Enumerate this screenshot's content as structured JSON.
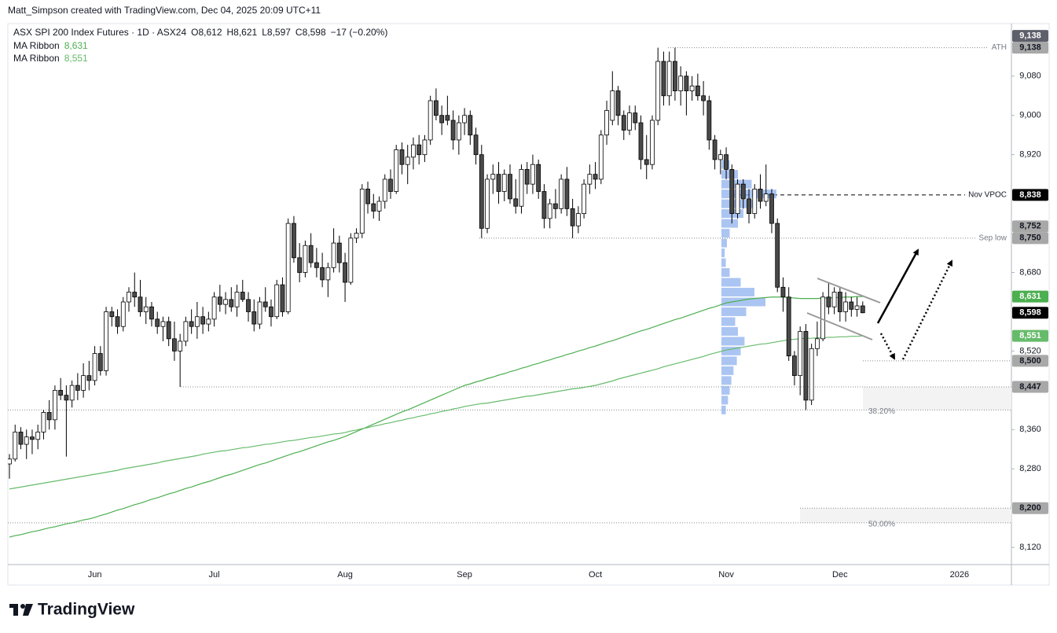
{
  "header": {
    "attribution": "Matt_Simpson created with TradingView.com, Dec 04, 2025 20:09 UTC+11",
    "brand": "TradingView"
  },
  "chart_data": {
    "type": "candlestick",
    "title": "ASX SPI 200 Index Futures · 1D · ASX24",
    "legend_values": [
      {
        "key": "O",
        "value": "8,612"
      },
      {
        "key": "H",
        "value": "8,621"
      },
      {
        "key": "L",
        "value": "8,597"
      },
      {
        "key": "C",
        "value": "8,598"
      }
    ],
    "change": "−17 (−0.20%)",
    "categories": [
      null,
      null,
      null,
      null,
      null,
      null,
      null,
      null,
      null,
      null,
      null,
      null,
      null,
      null,
      null,
      "Jun",
      null,
      null,
      null,
      null,
      null,
      null,
      null,
      null,
      null,
      null,
      null,
      null,
      null,
      null,
      null,
      null,
      null,
      null,
      null,
      null,
      "Jul",
      null,
      null,
      null,
      null,
      null,
      null,
      null,
      null,
      null,
      null,
      null,
      null,
      null,
      null,
      null,
      null,
      null,
      null,
      null,
      null,
      null,
      null,
      "Aug",
      null,
      null,
      null,
      null,
      null,
      null,
      null,
      null,
      null,
      null,
      null,
      null,
      null,
      null,
      null,
      null,
      null,
      null,
      null,
      null,
      "Sep",
      null,
      null,
      null,
      null,
      null,
      null,
      null,
      null,
      null,
      null,
      null,
      null,
      null,
      null,
      null,
      null,
      null,
      null,
      null,
      null,
      null,
      null,
      "Oct",
      null,
      null,
      null,
      null,
      null,
      null,
      null,
      null,
      null,
      null,
      null,
      null,
      null,
      null,
      null,
      null,
      null,
      null,
      null,
      null,
      null,
      null,
      "Nov",
      null,
      null,
      null,
      null,
      null,
      null,
      null,
      null,
      null,
      null,
      null,
      null,
      null,
      null,
      null,
      null,
      null,
      null,
      null,
      "Dec",
      null,
      null,
      null,
      null,
      null,
      null,
      null,
      null,
      null,
      null,
      null,
      null,
      null,
      null,
      null,
      null,
      null,
      null,
      null,
      null,
      "2026",
      null,
      null,
      null,
      null,
      null,
      null,
      null,
      null,
      null
    ],
    "open": [
      8290,
      8300,
      8355,
      8330,
      8345,
      8340,
      8355,
      8395,
      8380,
      8440,
      8430,
      8420,
      8450,
      8440,
      8470,
      8460,
      8515,
      8480,
      8600,
      8590,
      8570,
      8620,
      8640,
      8630,
      8600,
      8610,
      8585,
      8570,
      8580,
      8545,
      8520,
      8540,
      8580,
      8570,
      8590,
      8575,
      8585,
      8630,
      8615,
      8625,
      8610,
      8640,
      8625,
      8600,
      8575,
      8620,
      8610,
      8590,
      8655,
      8600,
      8780,
      8710,
      8680,
      8735,
      8700,
      8690,
      8665,
      8690,
      8740,
      8700,
      8660,
      8750,
      8760,
      8850,
      8820,
      8805,
      8825,
      8870,
      8845,
      8930,
      8900,
      8915,
      8940,
      8920,
      8950,
      9030,
      9000,
      9000,
      8990,
      8950,
      8985,
      9000,
      8960,
      8920,
      8770,
      8870,
      8880,
      8845,
      8880,
      8830,
      8815,
      8890,
      8860,
      8900,
      8845,
      8790,
      8820,
      8810,
      8870,
      8810,
      8775,
      8800,
      8860,
      8880,
      8870,
      8960,
      8990,
      9050,
      9000,
      8970,
      9005,
      8985,
      8910,
      8900,
      8990,
      9110,
      9040,
      9110,
      9050,
      9080,
      9050,
      9060,
      9040,
      9030,
      8950,
      8910,
      8920,
      8890,
      8800,
      8860,
      8830,
      8800,
      8850,
      8825,
      8840,
      8780,
      8650,
      8630,
      8510,
      8470,
      8560,
      8420,
      8525,
      8545,
      8630,
      8610,
      8640,
      8600,
      8620,
      8605,
      8612,
      null,
      null,
      null,
      null,
      null,
      null,
      null,
      null,
      null,
      null,
      null,
      null,
      null,
      null,
      null,
      null,
      null,
      null,
      null,
      null,
      null,
      null,
      null,
      null,
      null,
      null
    ],
    "high": [
      8310,
      8370,
      8365,
      8360,
      8360,
      8370,
      8400,
      8420,
      8450,
      8465,
      8450,
      8460,
      8475,
      8495,
      8500,
      8530,
      8530,
      8610,
      8610,
      8605,
      8630,
      8650,
      8680,
      8665,
      8630,
      8620,
      8600,
      8590,
      8590,
      8580,
      8555,
      8590,
      8605,
      8620,
      8610,
      8600,
      8640,
      8655,
      8640,
      8650,
      8655,
      8665,
      8640,
      8625,
      8630,
      8650,
      8625,
      8665,
      8670,
      8790,
      8795,
      8740,
      8745,
      8760,
      8730,
      8720,
      8700,
      8770,
      8755,
      8720,
      8760,
      8770,
      8860,
      8865,
      8840,
      8835,
      8880,
      8890,
      8940,
      8945,
      8940,
      8955,
      8960,
      8960,
      9040,
      9055,
      9020,
      9040,
      9010,
      9000,
      9015,
      9010,
      8975,
      8940,
      8880,
      8900,
      8905,
      8890,
      8900,
      8870,
      8900,
      8905,
      8920,
      8910,
      8860,
      8830,
      8850,
      8880,
      8895,
      8830,
      8815,
      8870,
      8900,
      8905,
      8970,
      9030,
      9090,
      9060,
      9010,
      9020,
      9020,
      9000,
      8960,
      9000,
      9138,
      9130,
      9130,
      9138,
      9100,
      9090,
      9080,
      9085,
      9070,
      9040,
      8960,
      8930,
      8935,
      8900,
      8870,
      8870,
      8850,
      8860,
      8880,
      8900,
      8850,
      8790,
      8670,
      8650,
      8520,
      8570,
      8575,
      8535,
      8580,
      8640,
      8660,
      8650,
      8650,
      8640,
      8630,
      8630,
      8621,
      null,
      null,
      null,
      null,
      null,
      null,
      null,
      null,
      null,
      null,
      null,
      null,
      null,
      null,
      null,
      null,
      null,
      null,
      null,
      null,
      null,
      null,
      null,
      null,
      null,
      null
    ],
    "low": [
      8260,
      8295,
      8320,
      8300,
      8310,
      8320,
      8340,
      8360,
      8360,
      8420,
      8305,
      8405,
      8420,
      8425,
      8440,
      8450,
      8470,
      8470,
      8570,
      8555,
      8560,
      8600,
      8610,
      8590,
      8575,
      8570,
      8555,
      8540,
      8530,
      8500,
      8447,
      8530,
      8555,
      8545,
      8555,
      8560,
      8570,
      8600,
      8595,
      8600,
      8590,
      8620,
      8580,
      8560,
      8565,
      8600,
      8570,
      8585,
      8590,
      8595,
      8700,
      8660,
      8670,
      8690,
      8670,
      8650,
      8630,
      8680,
      8680,
      8620,
      8655,
      8740,
      8750,
      8800,
      8790,
      8785,
      8810,
      8830,
      8840,
      8880,
      8860,
      8890,
      8900,
      8905,
      8940,
      8990,
      8960,
      8980,
      8930,
      8920,
      8960,
      8940,
      8900,
      8750,
      8760,
      8840,
      8820,
      8825,
      8820,
      8800,
      8800,
      8840,
      8840,
      8830,
      8770,
      8770,
      8790,
      8800,
      8795,
      8750,
      8760,
      8790,
      8840,
      8850,
      8860,
      8940,
      8980,
      8980,
      8950,
      8960,
      8970,
      8890,
      8870,
      8890,
      8980,
      9020,
      9020,
      9030,
      9020,
      9000,
      9030,
      9030,
      9000,
      8930,
      8890,
      8880,
      8870,
      8780,
      8790,
      8810,
      8780,
      8790,
      8810,
      8815,
      8760,
      8640,
      8600,
      8500,
      8450,
      8430,
      8400,
      8410,
      8510,
      8540,
      8595,
      8595,
      8580,
      8580,
      8590,
      8590,
      8597,
      null,
      null,
      null,
      null,
      null,
      null,
      null,
      null,
      null,
      null,
      null,
      null,
      null,
      null,
      null,
      null,
      null,
      null,
      null,
      null,
      null,
      null,
      null,
      null,
      null,
      null
    ],
    "close": [
      8300,
      8355,
      8330,
      8345,
      8340,
      8355,
      8395,
      8380,
      8440,
      8430,
      8420,
      8450,
      8440,
      8470,
      8460,
      8515,
      8480,
      8600,
      8590,
      8570,
      8620,
      8640,
      8630,
      8600,
      8610,
      8585,
      8570,
      8580,
      8545,
      8520,
      8540,
      8580,
      8570,
      8590,
      8575,
      8585,
      8630,
      8615,
      8625,
      8610,
      8640,
      8625,
      8600,
      8575,
      8620,
      8610,
      8590,
      8655,
      8600,
      8780,
      8710,
      8680,
      8735,
      8700,
      8690,
      8665,
      8690,
      8740,
      8700,
      8660,
      8750,
      8760,
      8850,
      8820,
      8805,
      8825,
      8870,
      8845,
      8930,
      8900,
      8915,
      8940,
      8920,
      8950,
      9030,
      9000,
      8985,
      8990,
      8950,
      8985,
      9000,
      8960,
      8920,
      8770,
      8870,
      8880,
      8845,
      8880,
      8830,
      8815,
      8890,
      8860,
      8900,
      8845,
      8790,
      8820,
      8810,
      8870,
      8810,
      8775,
      8800,
      8860,
      8880,
      8870,
      8960,
      9010,
      9050,
      9000,
      8970,
      9005,
      8985,
      8910,
      8900,
      8990,
      9110,
      9040,
      9110,
      9050,
      9080,
      9050,
      9060,
      9040,
      9030,
      8950,
      8910,
      8920,
      8890,
      8800,
      8860,
      8830,
      8800,
      8850,
      8825,
      8840,
      8780,
      8650,
      8630,
      8510,
      8470,
      8560,
      8420,
      8525,
      8545,
      8630,
      8610,
      8640,
      8600,
      8620,
      8605,
      8612,
      8598,
      null,
      null,
      null,
      null,
      null,
      null,
      null,
      null,
      null,
      null,
      null,
      null,
      null,
      null,
      null,
      null,
      null,
      null,
      null,
      null,
      null,
      null,
      null,
      null,
      null,
      null
    ],
    "up_color": "#ffffff",
    "down_color": "#4a4a4a",
    "wick_color": "#000000",
    "last_value_label": "8,598",
    "series": [
      {
        "name": "MA Ribbon",
        "color": "#4caf50",
        "value_label": "8,631",
        "values": [
          8141,
          8144,
          8146,
          8149,
          8152,
          8154,
          8157,
          8160,
          8162,
          8165,
          8168,
          8170,
          8173,
          8176,
          8178,
          8181,
          8185,
          8188,
          8192,
          8196,
          8199,
          8203,
          8207,
          8210,
          8214,
          8218,
          8221,
          8225,
          8229,
          8232,
          8236,
          8240,
          8243,
          8247,
          8251,
          8254,
          8258,
          8262,
          8266,
          8269,
          8273,
          8277,
          8281,
          8285,
          8289,
          8292,
          8296,
          8300,
          8304,
          8308,
          8312,
          8315,
          8319,
          8323,
          8327,
          8331,
          8335,
          8338,
          8342,
          8346,
          8351,
          8356,
          8361,
          8366,
          8371,
          8376,
          8381,
          8386,
          8391,
          8396,
          8400,
          8405,
          8410,
          8415,
          8420,
          8425,
          8430,
          8435,
          8440,
          8445,
          8450,
          8453,
          8457,
          8460,
          8464,
          8467,
          8471,
          8474,
          8478,
          8481,
          8485,
          8488,
          8492,
          8495,
          8499,
          8502,
          8506,
          8509,
          8513,
          8516,
          8520,
          8523,
          8527,
          8530,
          8534,
          8538,
          8541,
          8545,
          8549,
          8553,
          8557,
          8561,
          8564,
          8568,
          8572,
          8576,
          8580,
          8584,
          8587,
          8591,
          8595,
          8599,
          8603,
          8607,
          8610,
          8614,
          8618,
          8620,
          8622,
          8624,
          8626,
          8627,
          8628,
          8629,
          8630,
          8630,
          8630,
          8629,
          8628,
          8627,
          8627,
          8627,
          8627,
          8628,
          8628,
          8629,
          8629,
          8630,
          8630,
          8631,
          8631,
          null,
          null,
          null,
          null,
          null,
          null,
          null,
          null,
          null,
          null,
          null,
          null,
          null,
          null,
          null,
          null,
          null,
          null,
          null,
          null,
          null,
          null,
          null,
          null,
          null,
          null
        ]
      },
      {
        "name": "MA Ribbon",
        "color": "#66bb6a",
        "value_label": "8,551",
        "values": [
          8239,
          8241,
          8243,
          8245,
          8247,
          8249,
          8251,
          8253,
          8255,
          8257,
          8259,
          8261,
          8263,
          8265,
          8267,
          8269,
          8271,
          8273,
          8275,
          8277,
          8280,
          8282,
          8284,
          8286,
          8288,
          8290,
          8292,
          8295,
          8297,
          8299,
          8301,
          8303,
          8305,
          8307,
          8310,
          8312,
          8314,
          8316,
          8317,
          8319,
          8321,
          8323,
          8324,
          8326,
          8328,
          8330,
          8331,
          8333,
          8335,
          8337,
          8338,
          8340,
          8342,
          8344,
          8345,
          8347,
          8349,
          8351,
          8352,
          8354,
          8357,
          8359,
          8362,
          8364,
          8367,
          8369,
          8372,
          8374,
          8377,
          8379,
          8382,
          8384,
          8387,
          8389,
          8392,
          8394,
          8397,
          8399,
          8402,
          8404,
          8407,
          8409,
          8411,
          8413,
          8414,
          8416,
          8418,
          8420,
          8422,
          8424,
          8426,
          8428,
          8429,
          8431,
          8433,
          8435,
          8437,
          8439,
          8441,
          8443,
          8444,
          8446,
          8448,
          8450,
          8453,
          8456,
          8459,
          8463,
          8466,
          8469,
          8472,
          8475,
          8478,
          8481,
          8484,
          8488,
          8491,
          8494,
          8497,
          8500,
          8503,
          8506,
          8509,
          8513,
          8516,
          8519,
          8522,
          8524,
          8526,
          8528,
          8530,
          8532,
          8534,
          8535,
          8537,
          8539,
          8541,
          8543,
          8544,
          8545,
          8546,
          8546,
          8547,
          8547,
          8548,
          8548,
          8549,
          8549,
          8550,
          8550,
          8551,
          null,
          null,
          null,
          null,
          null,
          null,
          null,
          null,
          null,
          null,
          null,
          null,
          null,
          null,
          null,
          null,
          null,
          null,
          null,
          null,
          null,
          null,
          null,
          null,
          null,
          null
        ]
      }
    ],
    "ylim": [
      8085,
      9187
    ],
    "yticks": [
      {
        "value": 8120,
        "label": "8,120"
      },
      {
        "value": 8280,
        "label": "8,280"
      },
      {
        "value": 8360,
        "label": "8,360"
      },
      {
        "value": 8520,
        "label": "8,520"
      },
      {
        "value": 8680,
        "label": "8,680"
      },
      {
        "value": 8920,
        "label": "8,920"
      },
      {
        "value": 9000,
        "label": "9,000"
      },
      {
        "value": 9080,
        "label": "9,080"
      }
    ],
    "grid": false,
    "levels": [
      {
        "label": "ATH",
        "value": 9138,
        "value_label": "9,138",
        "line": "dotted",
        "badge": "#a8a8a8"
      },
      {
        "value": 9138,
        "value_label": "9,138",
        "badge": "#5d606b"
      },
      {
        "label": "Nov VPOC",
        "value": 8838,
        "value_label": "8,838",
        "line": "dashed",
        "badge": "#000000"
      },
      {
        "label": "Sep low",
        "value": 8750,
        "value_label": "8,750",
        "line": "dotted",
        "badge": "#a8a8a8"
      },
      {
        "value": 8752,
        "value_label": "8,752",
        "badge": "#a8a8a8"
      },
      {
        "value": 8500,
        "value_label": "8,500",
        "line": "dotted",
        "badge": "#a8a8a8"
      },
      {
        "value": 8447,
        "value_label": "8,447",
        "line": "dotted",
        "badge": "#a8a8a8"
      },
      {
        "label": "38.20%",
        "value": 8400,
        "line": "dotted"
      },
      {
        "value": 8200,
        "value_label": "8,200",
        "line": "dotted",
        "badge": "#a8a8a8"
      },
      {
        "label": "50.00%",
        "value": 8170,
        "line": "dotted"
      }
    ],
    "volume_profile": {
      "color": "#8fb1ee",
      "prices": [
        8400,
        8420,
        8440,
        8460,
        8480,
        8500,
        8520,
        8540,
        8560,
        8580,
        8600,
        8620,
        8640,
        8660,
        8680,
        8700,
        8720,
        8740,
        8760,
        8780,
        8800,
        8820,
        8840,
        8860,
        8880,
        8900
      ],
      "values": [
        8,
        12,
        15,
        18,
        22,
        28,
        35,
        42,
        30,
        25,
        45,
        80,
        60,
        35,
        15,
        8,
        6,
        10,
        15,
        30,
        40,
        60,
        100,
        55,
        30,
        15
      ]
    }
  }
}
